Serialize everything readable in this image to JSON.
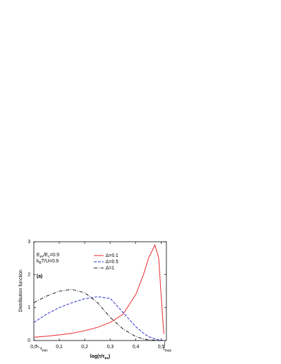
{
  "chart_data": {
    "type": "line",
    "y_label": "Distribution function",
    "x_label_parts": [
      "log(τ/τ",
      "ex",
      ")"
    ],
    "annotations": [
      {
        "parts": [
          "E",
          "ex",
          "/E",
          "c",
          "=0.9"
        ]
      },
      {
        "parts": [
          "k",
          "B",
          "T/U=0.9"
        ]
      },
      {
        "parts": [
          "(a)"
        ]
      },
      {
        "parts": [
          "τ",
          "min"
        ]
      },
      {
        "parts": [
          "τ",
          "max"
        ]
      }
    ],
    "x": [
      0,
      0.05,
      0.1,
      0.15,
      0.2,
      0.25,
      0.3,
      0.35,
      0.4,
      0.43,
      0.45,
      0.475,
      0.49,
      0.5,
      0.51
    ],
    "series": [
      {
        "name": "Δ=0.1",
        "color": "#e8262a",
        "dash": "solid",
        "values": [
          0.1,
          0.13,
          0.17,
          0.22,
          0.3,
          0.4,
          0.55,
          0.8,
          1.4,
          2.0,
          2.5,
          2.9,
          2.5,
          1.3,
          0.2
        ]
      },
      {
        "name": "Δ=0.5",
        "color": "#2a2ad0",
        "dash": "dash",
        "values": [
          0.55,
          0.8,
          1.0,
          1.15,
          1.27,
          1.33,
          1.28,
          0.85,
          0.42,
          0.22,
          0.12,
          0.05,
          0.02,
          0.01,
          0
        ]
      },
      {
        "name": "Δ=1",
        "color": "#111111",
        "dash": "dashdot",
        "values": [
          1.15,
          1.35,
          1.5,
          1.55,
          1.45,
          1.15,
          0.7,
          0.35,
          0.12,
          0.05,
          0.02,
          0.01,
          0,
          0,
          0
        ]
      }
    ],
    "xlim": [
      0,
      0.52
    ],
    "ylim": [
      0,
      3
    ],
    "xticks": [
      {
        "value": 0,
        "label": "0,0"
      },
      {
        "value": 0.1,
        "label": "0,1"
      },
      {
        "value": 0.2,
        "label": "0,2"
      },
      {
        "value": 0.3,
        "label": "0,3"
      },
      {
        "value": 0.4,
        "label": "0,4"
      },
      {
        "value": 0.5,
        "label": "0,5"
      }
    ],
    "yticks": [
      0,
      1,
      2,
      3
    ],
    "legend": "top"
  }
}
